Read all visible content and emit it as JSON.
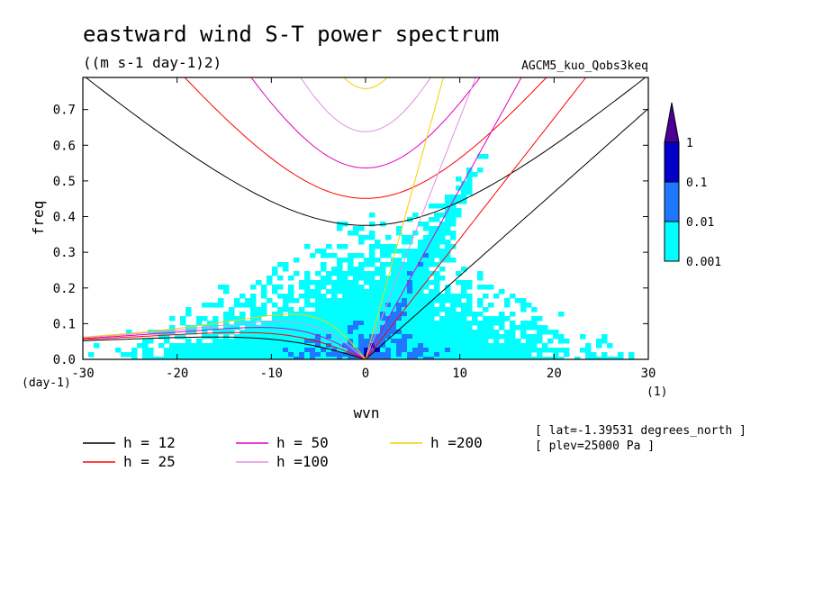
{
  "chart_data": {
    "type": "heatmap",
    "title": "eastward wind S-T power spectrum",
    "units": "((m s-1 day-1)2)",
    "model": "AGCM5_kuo_Qobs3keq",
    "xlabel": "wvn",
    "ylabel": "freq",
    "x_unit": "(1)",
    "y_unit": "(day-1)",
    "xlim": [
      -30,
      30
    ],
    "ylim": [
      0,
      0.79
    ],
    "xticks": [
      "-30",
      "-20",
      "-10",
      "0",
      "10",
      "20",
      "30"
    ],
    "yticks": [
      "0.0",
      "0.1",
      "0.2",
      "0.3",
      "0.4",
      "0.5",
      "0.6",
      "0.7"
    ],
    "colorbar": {
      "levels": [
        "0.001",
        "0.01",
        "0.1",
        "1"
      ],
      "colors": [
        "#00ffff",
        "#1e78ff",
        "#0000c8",
        "#4b0096"
      ]
    },
    "curves": [
      {
        "label": "h = 12",
        "h": 12,
        "color": "#000000"
      },
      {
        "label": "h = 25",
        "h": 25,
        "color": "#ff0000"
      },
      {
        "label": "h = 50",
        "h": 50,
        "color": "#e000c0"
      },
      {
        "label": "h =100",
        "h": 100,
        "color": "#e090e0"
      },
      {
        "label": "h =200",
        "h": 200,
        "color": "#f5d000"
      }
    ],
    "info": [
      "[ lat=-1.39531 degrees_north ]",
      "[ plev=25000 Pa ]"
    ]
  }
}
